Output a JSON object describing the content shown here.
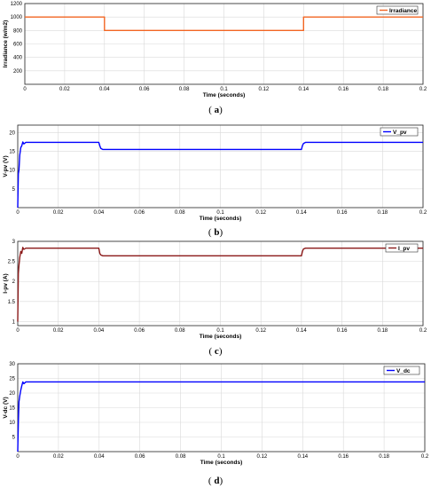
{
  "chart_data": [
    {
      "id": "a",
      "type": "line",
      "caption": "(a)",
      "xlabel": "Time (seconds)",
      "ylabel": "Irradiance (w/m2)",
      "xlim": [
        0,
        0.2
      ],
      "ylim": [
        0,
        1200
      ],
      "xticks": [
        0,
        0.02,
        0.04,
        0.06,
        0.08,
        0.1,
        0.12,
        0.14,
        0.16,
        0.18,
        0.2
      ],
      "yticks": [
        200,
        400,
        600,
        800,
        1000,
        1200
      ],
      "grid": true,
      "legend": "top-right",
      "series": [
        {
          "name": "Irradiance",
          "color": "#f26522",
          "x": [
            0,
            0.04,
            0.04,
            0.14,
            0.14,
            0.2
          ],
          "y": [
            1000,
            1000,
            800,
            800,
            1000,
            1000
          ]
        }
      ]
    },
    {
      "id": "b",
      "type": "line",
      "caption": "(b)",
      "xlabel": "Time (seconds)",
      "ylabel": "V-pv (V)",
      "xlim": [
        0,
        0.2
      ],
      "ylim": [
        0,
        22
      ],
      "xticks": [
        0,
        0.02,
        0.04,
        0.06,
        0.08,
        0.1,
        0.12,
        0.14,
        0.16,
        0.18,
        0.2
      ],
      "yticks": [
        5,
        10,
        15,
        20
      ],
      "grid": true,
      "legend": "top-right",
      "series": [
        {
          "name": "V_pv",
          "color": "#0000ff",
          "x": [
            0,
            0.0003,
            0.0006,
            0.001,
            0.0015,
            0.002,
            0.0025,
            0.003,
            0.004,
            0.04,
            0.0405,
            0.041,
            0.042,
            0.14,
            0.1405,
            0.141,
            0.142,
            0.2
          ],
          "y": [
            0,
            9,
            10,
            14,
            16,
            16.5,
            17.5,
            17,
            17.4,
            17.4,
            16.5,
            15.8,
            15.5,
            15.5,
            16.5,
            17.1,
            17.4,
            17.4
          ]
        }
      ]
    },
    {
      "id": "c",
      "type": "line",
      "caption": "(c)",
      "xlabel": "Time (seconds)",
      "ylabel": "I-pv (A)",
      "xlim": [
        0,
        0.2
      ],
      "ylim": [
        0.9,
        3
      ],
      "xticks": [
        0,
        0.02,
        0.04,
        0.06,
        0.08,
        0.1,
        0.12,
        0.14,
        0.16,
        0.18,
        0.2
      ],
      "yticks": [
        1,
        1.5,
        2,
        2.5,
        3
      ],
      "grid": true,
      "legend": "top-right",
      "series": [
        {
          "name": "I_pv",
          "color": "#8b1a1a",
          "x": [
            0,
            0.0003,
            0.0006,
            0.001,
            0.0015,
            0.002,
            0.0025,
            0.003,
            0.004,
            0.04,
            0.0405,
            0.041,
            0.042,
            0.14,
            0.1405,
            0.141,
            0.142,
            0.2
          ],
          "y": [
            1,
            2.2,
            2.4,
            2.6,
            2.75,
            2.7,
            2.85,
            2.8,
            2.83,
            2.83,
            2.7,
            2.66,
            2.64,
            2.64,
            2.75,
            2.81,
            2.83,
            2.83
          ]
        }
      ]
    },
    {
      "id": "d",
      "type": "line",
      "caption": "(d)",
      "xlabel": "Time (seconds)",
      "ylabel": "V-dc (V)",
      "xlim": [
        0,
        0.2
      ],
      "ylim": [
        0,
        30
      ],
      "xticks": [
        0,
        0.02,
        0.04,
        0.06,
        0.08,
        0.1,
        0.12,
        0.14,
        0.16,
        0.18,
        0.2
      ],
      "yticks": [
        5,
        10,
        15,
        20,
        25,
        30
      ],
      "grid": true,
      "legend": "top-right",
      "series": [
        {
          "name": "V_dc",
          "color": "#0000ff",
          "x": [
            0,
            0.0003,
            0.0006,
            0.001,
            0.0015,
            0.002,
            0.0025,
            0.003,
            0.004,
            0.2
          ],
          "y": [
            0,
            10,
            17,
            19,
            21,
            22.5,
            23.8,
            23.2,
            23.8,
            23.8
          ]
        }
      ]
    }
  ]
}
